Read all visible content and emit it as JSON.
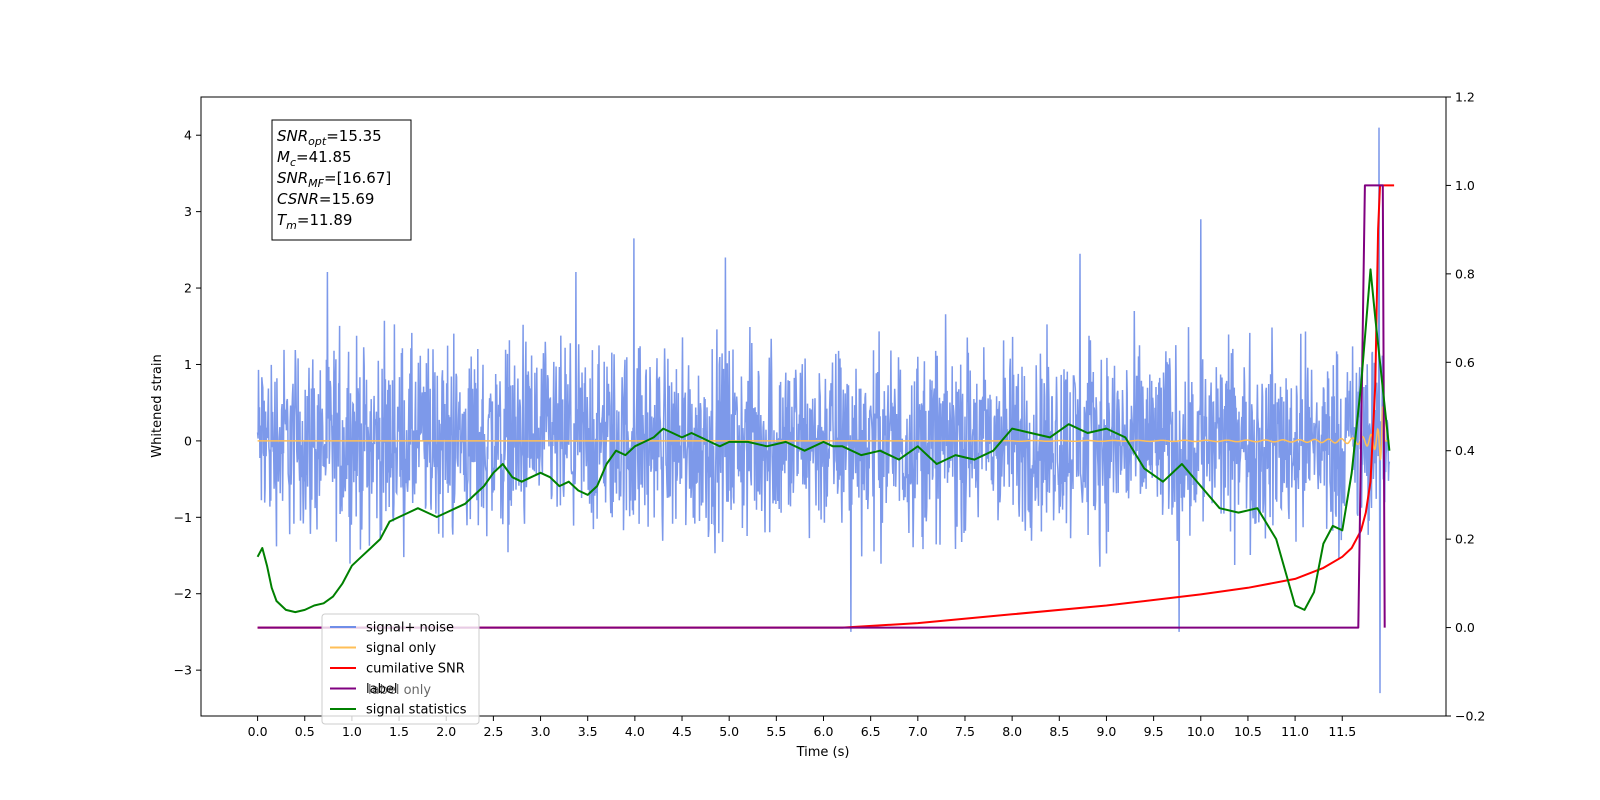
{
  "chart_data": {
    "type": "line",
    "xlabel": "Time (s)",
    "ylabel_left": "Whitened strain",
    "ylabel_right": "",
    "xlim": [
      -0.6,
      12.6
    ],
    "ylim_left": [
      -3.6,
      4.5
    ],
    "ylim_right": [
      -0.2,
      1.2
    ],
    "x_ticks": [
      "0.0",
      "0.5",
      "1.0",
      "1.5",
      "2.0",
      "2.5",
      "3.0",
      "3.5",
      "4.0",
      "4.5",
      "5.0",
      "5.5",
      "6.0",
      "6.5",
      "7.0",
      "7.5",
      "8.0",
      "8.5",
      "9.0",
      "9.5",
      "10.0",
      "10.5",
      "11.0",
      "11.5"
    ],
    "y_ticks_left": [
      "−3",
      "−2",
      "−1",
      "0",
      "1",
      "2",
      "3",
      "4"
    ],
    "y_ticks_right": [
      "−0.2",
      "0.0",
      "0.2",
      "0.4",
      "0.6",
      "0.8",
      "1.0",
      "1.2"
    ],
    "info_box": [
      {
        "main": "SNR",
        "sub": "opt",
        "value": "=15.35"
      },
      {
        "main": "M",
        "sub": "c",
        "value": "=41.85"
      },
      {
        "main": "SNR",
        "sub": "MF",
        "value": "=[16.67]"
      },
      {
        "main": "CSNR",
        "sub": "",
        "value": "=15.69"
      },
      {
        "main": "T",
        "sub": "m",
        "value": "=11.89"
      }
    ],
    "legend": {
      "position": "lower-left",
      "entries": [
        {
          "label": "signal+ noise",
          "color": "#6f8ee8"
        },
        {
          "label": "signal only",
          "color": "#ffbf57"
        },
        {
          "label": "cumilative SNR",
          "color": "#ff0000"
        },
        {
          "label": "label",
          "color": "#800080"
        },
        {
          "label": "signal statistics",
          "color": "#008000"
        }
      ],
      "hidden_label": "label only"
    },
    "series": [
      {
        "name": "signal+ noise",
        "axis": "left",
        "color": "#6f8ee8",
        "x_range": [
          0,
          12.0
        ],
        "envelope_typical": 1.2,
        "noise_peak": 2.6,
        "spikes": [
          [
            3.99,
            2.65
          ],
          [
            10.0,
            2.9
          ],
          [
            11.89,
            4.1
          ],
          [
            11.9,
            -3.3
          ],
          [
            6.29,
            -2.5
          ],
          [
            9.77,
            -2.5
          ],
          [
            4.96,
            2.4
          ],
          [
            8.72,
            2.45
          ]
        ]
      },
      {
        "name": "signal only",
        "axis": "left",
        "color": "#ffbf57",
        "x_range": [
          0,
          12.0
        ],
        "amplitude_end": 0.5
      },
      {
        "name": "cumilative SNR",
        "axis": "right",
        "color": "#ff0000",
        "x": [
          0,
          6.2,
          7.0,
          8.0,
          9.0,
          10.0,
          10.5,
          11.0,
          11.3,
          11.5,
          11.6,
          11.7,
          11.75,
          11.8,
          11.85,
          11.88,
          11.9,
          12.05
        ],
        "y": [
          0,
          0,
          0.01,
          0.03,
          0.05,
          0.075,
          0.09,
          0.11,
          0.135,
          0.16,
          0.18,
          0.22,
          0.26,
          0.33,
          0.55,
          0.9,
          1.0,
          1.0
        ]
      },
      {
        "name": "label",
        "axis": "right",
        "color": "#800080",
        "x": [
          0,
          11.67,
          11.74,
          11.85,
          11.86,
          11.93,
          11.95
        ],
        "y": [
          0,
          0,
          1.0,
          1.0,
          1.0,
          1.0,
          0
        ]
      },
      {
        "name": "signal statistics",
        "axis": "right",
        "color": "#008000",
        "x": [
          0,
          0.05,
          0.1,
          0.15,
          0.2,
          0.3,
          0.4,
          0.5,
          0.6,
          0.7,
          0.8,
          0.9,
          1.0,
          1.1,
          1.2,
          1.3,
          1.4,
          1.5,
          1.6,
          1.7,
          1.8,
          1.9,
          2.0,
          2.1,
          2.2,
          2.3,
          2.4,
          2.5,
          2.6,
          2.7,
          2.8,
          2.9,
          3.0,
          3.1,
          3.2,
          3.3,
          3.4,
          3.5,
          3.6,
          3.7,
          3.8,
          3.9,
          4.0,
          4.1,
          4.2,
          4.3,
          4.4,
          4.5,
          4.6,
          4.7,
          4.8,
          4.9,
          5.0,
          5.2,
          5.4,
          5.6,
          5.8,
          6.0,
          6.1,
          6.2,
          6.4,
          6.6,
          6.8,
          7.0,
          7.2,
          7.4,
          7.6,
          7.8,
          8.0,
          8.2,
          8.4,
          8.6,
          8.8,
          9.0,
          9.2,
          9.4,
          9.6,
          9.8,
          10.0,
          10.2,
          10.4,
          10.6,
          10.8,
          11.0,
          11.1,
          11.2,
          11.3,
          11.4,
          11.5,
          11.6,
          11.7,
          11.8,
          11.85,
          11.9,
          12.0
        ],
        "y": [
          0.16,
          0.18,
          0.14,
          0.09,
          0.06,
          0.04,
          0.035,
          0.04,
          0.05,
          0.055,
          0.07,
          0.1,
          0.14,
          0.16,
          0.18,
          0.2,
          0.24,
          0.25,
          0.26,
          0.27,
          0.26,
          0.25,
          0.26,
          0.27,
          0.28,
          0.3,
          0.32,
          0.35,
          0.37,
          0.34,
          0.33,
          0.34,
          0.35,
          0.34,
          0.32,
          0.33,
          0.31,
          0.3,
          0.32,
          0.37,
          0.4,
          0.39,
          0.41,
          0.42,
          0.43,
          0.45,
          0.44,
          0.43,
          0.44,
          0.43,
          0.42,
          0.41,
          0.42,
          0.42,
          0.41,
          0.42,
          0.4,
          0.42,
          0.41,
          0.41,
          0.39,
          0.4,
          0.38,
          0.41,
          0.37,
          0.39,
          0.38,
          0.4,
          0.45,
          0.44,
          0.43,
          0.46,
          0.44,
          0.45,
          0.43,
          0.36,
          0.33,
          0.37,
          0.32,
          0.27,
          0.26,
          0.27,
          0.2,
          0.05,
          0.04,
          0.08,
          0.19,
          0.23,
          0.22,
          0.35,
          0.55,
          0.81,
          0.7,
          0.6,
          0.4
        ]
      }
    ]
  }
}
